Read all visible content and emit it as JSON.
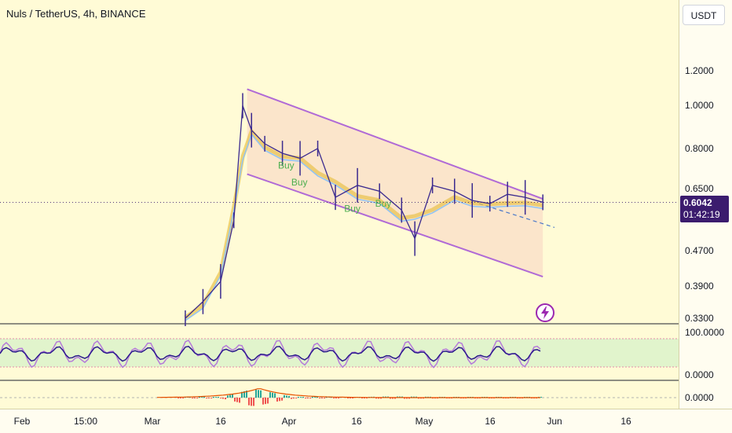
{
  "header": {
    "title": "Nuls / TetherUS, 4h, BINANCE",
    "currency": "USDT"
  },
  "price_tag": {
    "price": "0.6042",
    "countdown": "01:42:19"
  },
  "colors": {
    "background": "#fffbd6",
    "candle": "#3b2a8f",
    "channel": "#b06ad6",
    "channel_fill": "#f9d9c4",
    "cloud": "#8fc3f5",
    "buy": "#4caf50",
    "oscillator_fast": "#2b1a8c",
    "oscillator_slow": "#b57ad9",
    "bolt": "#9c27b0"
  },
  "icons": {
    "alert": "lightning-bolt-icon"
  },
  "chart_data": [
    {
      "type": "line",
      "panel": "price",
      "scale": "log",
      "y_ticks": [
        "1.2000",
        "1.0000",
        "0.8000",
        "0.6500",
        "0.4700",
        "0.3900",
        "0.3300"
      ],
      "x_ticks": [
        "Feb",
        "15:00",
        "Mar",
        "16",
        "Apr",
        "16",
        "May",
        "16",
        "Jun",
        "16"
      ],
      "last_price": 0.6042,
      "series": [
        {
          "x": [
            "Mar 10",
            "Mar 14",
            "Mar 18",
            "Mar 21",
            "Mar 23",
            "Mar 25",
            "Mar 28",
            "Apr 1",
            "Apr 5",
            "Apr 9",
            "Apr 13",
            "Apr 18",
            "Apr 23",
            "Apr 28",
            "May 1",
            "May 5",
            "May 10",
            "May 14",
            "May 18",
            "May 22",
            "May 26",
            "May 30"
          ],
          "values": [
            0.33,
            0.36,
            0.4,
            0.55,
            1.0,
            0.88,
            0.82,
            0.78,
            0.76,
            0.8,
            0.62,
            0.66,
            0.64,
            0.58,
            0.5,
            0.66,
            0.64,
            0.61,
            0.6,
            0.63,
            0.62,
            0.6042
          ]
        }
      ],
      "annotations": [
        {
          "text": "Buy",
          "x": "Mar 31",
          "y": 0.72
        },
        {
          "text": "Buy",
          "x": "Apr 3",
          "y": 0.66
        },
        {
          "text": "Buy",
          "x": "Apr 15",
          "y": 0.575
        },
        {
          "text": "Buy",
          "x": "Apr 22",
          "y": 0.59
        }
      ],
      "channel": {
        "upper": [
          [
            "Mar 24",
            1.09
          ],
          [
            "May 30",
            0.615
          ]
        ],
        "lower": [
          [
            "Mar 24",
            0.7
          ],
          [
            "May 30",
            0.41
          ]
        ]
      }
    },
    {
      "type": "line",
      "panel": "oscillator",
      "y_ticks": [
        "100.0000",
        "0.0000"
      ],
      "band": [
        20,
        80
      ]
    },
    {
      "type": "line",
      "panel": "histogram",
      "y_ticks": [
        "0.0000"
      ]
    }
  ]
}
